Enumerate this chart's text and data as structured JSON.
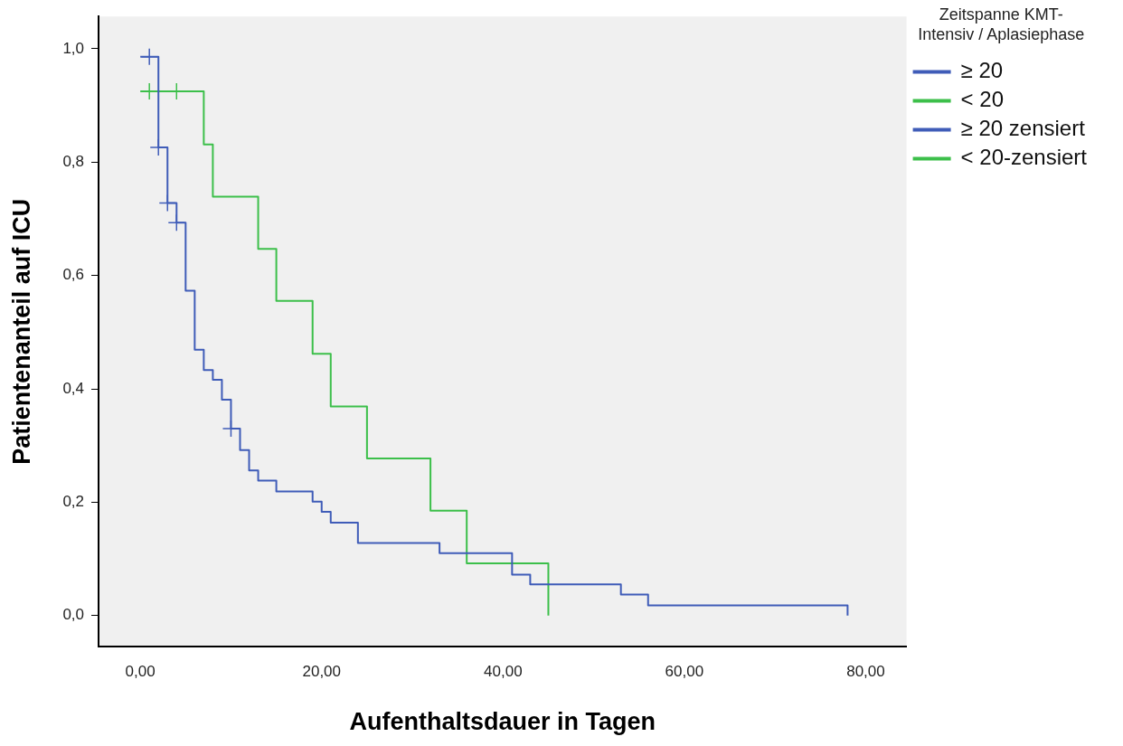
{
  "chart_data": {
    "type": "step",
    "xlabel": "Aufenthaltsdauer in Tagen",
    "ylabel": "Patientenanteil auf ICU",
    "legend_title": "Zeitspanne KMT-Intensiv / Aplasiephase",
    "legend": "right",
    "grid": false,
    "marker": "none",
    "xlim": [
      -4.6,
      84.5
    ],
    "ylim": [
      -0.055,
      1.057
    ],
    "xticks": [
      {
        "value": 0,
        "label": "0,00"
      },
      {
        "value": 20,
        "label": "20,00"
      },
      {
        "value": 40,
        "label": "40,00"
      },
      {
        "value": 60,
        "label": "60,00"
      },
      {
        "value": 80,
        "label": "80,00"
      }
    ],
    "yticks": [
      {
        "value": 0,
        "label": "0,0"
      },
      {
        "value": 0.2,
        "label": "0,2"
      },
      {
        "value": 0.4,
        "label": "0,4"
      },
      {
        "value": 0.6,
        "label": "0,6"
      },
      {
        "value": 0.8,
        "label": "0,8"
      },
      {
        "value": 1,
        "label": "1,0"
      }
    ],
    "series": [
      {
        "name": "≥ 20",
        "color": "#3f5cb8",
        "x": [
          0,
          2,
          3,
          4,
          5,
          6,
          7,
          8,
          9,
          10,
          11,
          12,
          13,
          15,
          19,
          20,
          21,
          24,
          33,
          41,
          43,
          53,
          56,
          78
        ],
        "values": [
          0.986,
          0.826,
          0.728,
          0.693,
          0.573,
          0.469,
          0.433,
          0.416,
          0.381,
          0.33,
          0.292,
          0.256,
          0.238,
          0.219,
          0.201,
          0.183,
          0.164,
          0.128,
          0.11,
          0.072,
          0.055,
          0.037,
          0.018,
          0
        ]
      },
      {
        "name": "< 20",
        "color": "#3cbf4a",
        "x": [
          0,
          7,
          8,
          13,
          15,
          19,
          21,
          25,
          32,
          36,
          45
        ],
        "values": [
          0.925,
          0.831,
          0.739,
          0.647,
          0.555,
          0.462,
          0.369,
          0.277,
          0.185,
          0.092,
          0
        ]
      },
      {
        "name": "≥ 20 zensiert",
        "type": "scatter",
        "marker": "cross",
        "color": "#3f5cb8",
        "x": [
          1,
          2,
          3,
          4,
          10
        ],
        "values": [
          0.986,
          0.826,
          0.728,
          0.693,
          0.33
        ]
      },
      {
        "name": "< 20-zensiert",
        "type": "scatter",
        "marker": "cross",
        "color": "#3cbf4a",
        "x": [
          1,
          4
        ],
        "values": [
          0.925,
          0.925
        ]
      }
    ]
  }
}
